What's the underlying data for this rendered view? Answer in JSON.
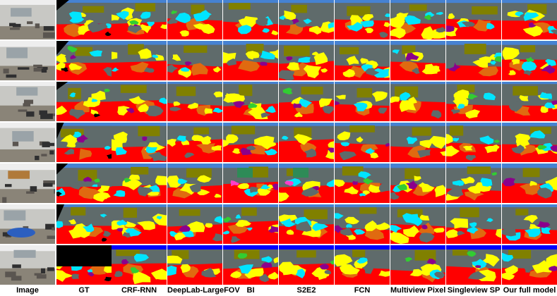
{
  "columns": [
    {
      "key": "image",
      "label": "Image"
    },
    {
      "key": "gt",
      "label": "GT"
    },
    {
      "key": "crf_rnn",
      "label": "CRF-RNN"
    },
    {
      "key": "deeplab",
      "label": "DeepLab-LargeFOV"
    },
    {
      "key": "bi",
      "label": "BI"
    },
    {
      "key": "s2e2",
      "label": "S2E2"
    },
    {
      "key": "fcn",
      "label": "FCN"
    },
    {
      "key": "multiview_pixel",
      "label": "Multiview Pixel"
    },
    {
      "key": "singleview_sp",
      "label": "Singleview SP"
    },
    {
      "key": "full_model",
      "label": "Our full model"
    }
  ],
  "row_count": 7,
  "palette": {
    "wall": "#5f6b6b",
    "floor": "#ff0000",
    "table": "#ffff00",
    "chair": "#00e5ff",
    "ceiling": "#4682d2",
    "board": "#808000",
    "furniture": "#e06a10",
    "misc": "#8b008b",
    "green": "#2e8b57",
    "black": "#000000",
    "pink": "#ff3ec8",
    "lime": "#32cd32",
    "blue": "#0000ff"
  },
  "photo_palette": {
    "wall": "#c8c8c4",
    "floor": "#8a8478",
    "furniture": "#5a5550",
    "light": "#eeeeee",
    "dark": "#2f2f30"
  }
}
